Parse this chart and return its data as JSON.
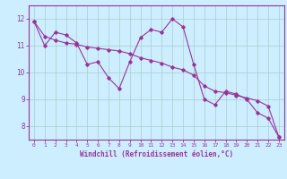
{
  "x": [
    0,
    1,
    2,
    3,
    4,
    5,
    6,
    7,
    8,
    9,
    10,
    11,
    12,
    13,
    14,
    15,
    16,
    17,
    18,
    19,
    20,
    21,
    22,
    23
  ],
  "y_main": [
    11.9,
    11.0,
    11.5,
    11.4,
    11.1,
    10.3,
    10.4,
    9.8,
    9.4,
    10.4,
    11.3,
    11.6,
    11.5,
    12.0,
    11.7,
    10.3,
    9.0,
    8.8,
    9.3,
    9.2,
    9.0,
    8.5,
    8.3,
    7.6
  ],
  "y_trend": [
    11.9,
    11.35,
    11.2,
    11.1,
    11.05,
    10.95,
    10.9,
    10.85,
    10.8,
    10.7,
    10.55,
    10.45,
    10.35,
    10.2,
    10.1,
    9.9,
    9.5,
    9.3,
    9.25,
    9.15,
    9.05,
    8.95,
    8.75,
    7.6
  ],
  "color": "#993399",
  "bg_color": "#cceeff",
  "grid_color": "#aacccc",
  "xlabel": "Windchill (Refroidissement éolien,°C)",
  "ylim": [
    7.5,
    12.5
  ],
  "xlim": [
    -0.5,
    23.5
  ],
  "yticks": [
    8,
    9,
    10,
    11,
    12
  ],
  "xticks": [
    0,
    1,
    2,
    3,
    4,
    5,
    6,
    7,
    8,
    9,
    10,
    11,
    12,
    13,
    14,
    15,
    16,
    17,
    18,
    19,
    20,
    21,
    22,
    23
  ]
}
